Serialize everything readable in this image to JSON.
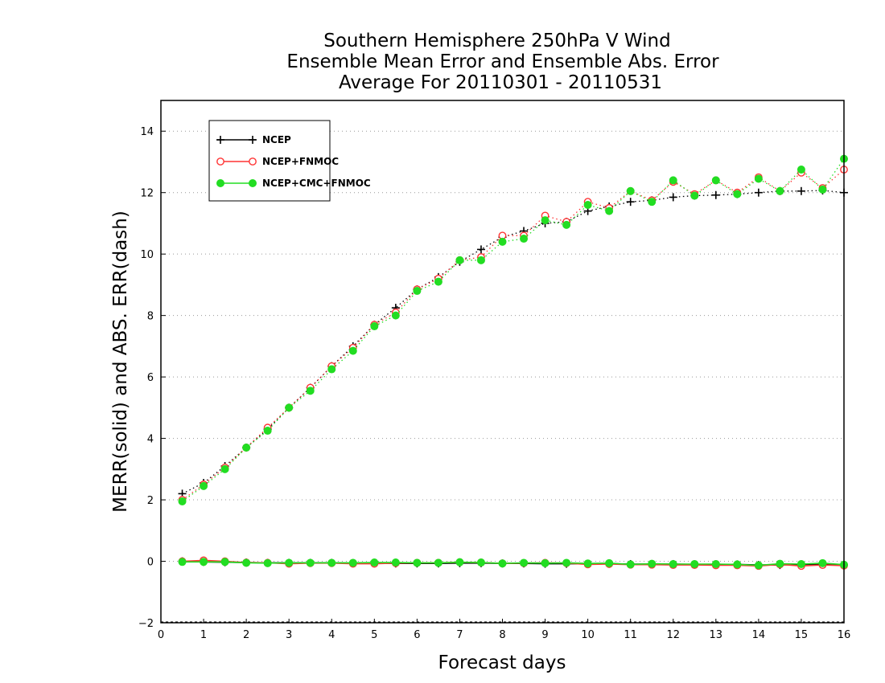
{
  "chart_data": {
    "type": "line",
    "title": [
      "Southern Hemisphere 250hPa V Wind",
      "Ensemble Mean Error and Ensemble Abs. Error",
      "Average For 20110301 - 20110531"
    ],
    "xlabel": "Forecast days",
    "ylabel": "MERR(solid) and ABS. ERR(dash)",
    "xlim": [
      0,
      16
    ],
    "ylim": [
      -2,
      15
    ],
    "xticks": [
      0,
      1,
      2,
      3,
      4,
      5,
      6,
      7,
      8,
      9,
      10,
      11,
      12,
      13,
      14,
      15,
      16
    ],
    "yticks": [
      -2,
      0,
      2,
      4,
      6,
      8,
      10,
      12,
      14
    ],
    "grid": "horizontal-dotted",
    "legend_position": "top-left",
    "x": [
      0.5,
      1,
      1.5,
      2,
      2.5,
      3,
      3.5,
      4,
      4.5,
      5,
      5.5,
      6,
      6.5,
      7,
      7.5,
      8,
      8.5,
      9,
      9.5,
      10,
      10.5,
      11,
      11.5,
      12,
      12.5,
      13,
      13.5,
      14,
      14.5,
      15,
      15.5,
      16
    ],
    "series": [
      {
        "name": "NCEP",
        "color": "#000000",
        "marker": "plus",
        "abs_err": [
          2.2,
          2.55,
          3.1,
          3.7,
          4.3,
          5.0,
          5.65,
          6.35,
          7.0,
          7.7,
          8.25,
          8.85,
          9.25,
          9.75,
          10.15,
          10.55,
          10.75,
          11.0,
          11.05,
          11.4,
          11.55,
          11.7,
          11.75,
          11.85,
          11.9,
          11.92,
          11.95,
          12.0,
          12.05,
          12.05,
          12.07,
          12.0
        ],
        "mean_err": [
          0.0,
          -0.02,
          -0.03,
          -0.04,
          -0.05,
          -0.05,
          -0.05,
          -0.05,
          -0.06,
          -0.06,
          -0.07,
          -0.07,
          -0.07,
          -0.06,
          -0.06,
          -0.07,
          -0.07,
          -0.08,
          -0.08,
          -0.08,
          -0.08,
          -0.09,
          -0.09,
          -0.09,
          -0.1,
          -0.1,
          -0.1,
          -0.12,
          -0.12,
          -0.1,
          -0.1,
          -0.12
        ]
      },
      {
        "name": "NCEP+FNMOC",
        "color": "#ff3333",
        "marker": "open-circle",
        "abs_err": [
          2.0,
          2.5,
          3.05,
          3.7,
          4.35,
          5.0,
          5.65,
          6.35,
          6.95,
          7.7,
          8.1,
          8.85,
          9.2,
          9.8,
          9.9,
          10.6,
          10.6,
          11.25,
          11.05,
          11.7,
          11.5,
          12.05,
          11.75,
          12.35,
          11.95,
          12.4,
          12.0,
          12.5,
          12.05,
          12.65,
          12.15,
          12.75
        ],
        "mean_err": [
          0.0,
          0.03,
          0.0,
          -0.04,
          -0.05,
          -0.08,
          -0.06,
          -0.06,
          -0.08,
          -0.08,
          -0.06,
          -0.05,
          -0.05,
          -0.03,
          -0.04,
          -0.07,
          -0.06,
          -0.05,
          -0.06,
          -0.1,
          -0.09,
          -0.11,
          -0.11,
          -0.12,
          -0.12,
          -0.13,
          -0.13,
          -0.15,
          -0.1,
          -0.15,
          -0.12,
          -0.14
        ]
      },
      {
        "name": "NCEP+CMC+FNMOC",
        "color": "#22dd22",
        "marker": "filled-circle",
        "abs_err": [
          1.95,
          2.45,
          3.0,
          3.7,
          4.25,
          5.0,
          5.55,
          6.25,
          6.85,
          7.65,
          8.0,
          8.8,
          9.1,
          9.8,
          9.8,
          10.4,
          10.5,
          11.1,
          10.95,
          11.6,
          11.4,
          12.05,
          11.7,
          12.4,
          11.9,
          12.4,
          11.95,
          12.45,
          12.05,
          12.75,
          12.1,
          13.1
        ],
        "mean_err": [
          -0.02,
          -0.02,
          -0.02,
          -0.05,
          -0.06,
          -0.05,
          -0.05,
          -0.05,
          -0.05,
          -0.04,
          -0.04,
          -0.05,
          -0.05,
          -0.03,
          -0.04,
          -0.07,
          -0.05,
          -0.06,
          -0.05,
          -0.07,
          -0.06,
          -0.1,
          -0.08,
          -0.09,
          -0.09,
          -0.09,
          -0.1,
          -0.13,
          -0.08,
          -0.09,
          -0.06,
          -0.11
        ]
      }
    ]
  }
}
